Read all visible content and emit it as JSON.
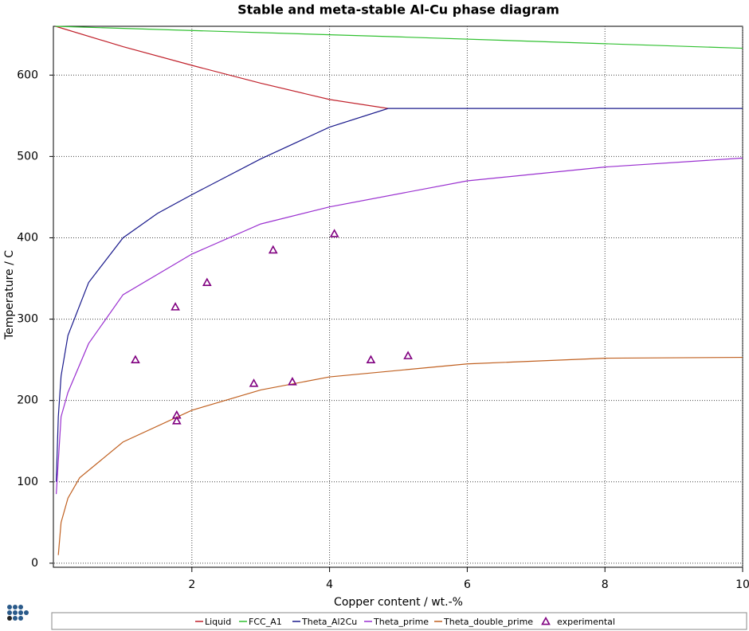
{
  "chart_data": {
    "type": "line",
    "title": "Stable and meta-stable Al-Cu phase diagram",
    "x_label": "Copper content / wt.-%",
    "y_label": "Temperature / C",
    "xlim": [
      0,
      10
    ],
    "ylim": [
      -5,
      660
    ],
    "xticks": [
      2,
      4,
      6,
      8,
      10
    ],
    "yticks": [
      0,
      100,
      200,
      300,
      400,
      500,
      600
    ],
    "grid": true,
    "legend": "bottom",
    "series": [
      {
        "name": "Liquid",
        "color": "#c0202a",
        "x": [
          0.02,
          1,
          2,
          3,
          4,
          4.85
        ],
        "values": [
          660,
          635,
          612,
          590,
          570,
          559
        ]
      },
      {
        "name": "FCC_A1",
        "color": "#30c030",
        "x": [
          0.02,
          5,
          10
        ],
        "values": [
          660,
          647,
          633
        ]
      },
      {
        "name": "Theta_Al2Cu",
        "color": "#1a1a8c",
        "x": [
          0.03,
          0.06,
          0.1,
          0.2,
          0.5,
          1,
          1.5,
          2,
          3,
          4,
          4.85,
          10
        ],
        "values": [
          100,
          180,
          230,
          280,
          345,
          400,
          430,
          453,
          497,
          536,
          559,
          559
        ]
      },
      {
        "name": "Theta_prime",
        "color": "#9a30d0",
        "x": [
          0.03,
          0.1,
          0.2,
          0.5,
          1,
          2,
          3,
          4,
          6,
          8,
          10
        ],
        "values": [
          85,
          180,
          210,
          270,
          330,
          380,
          417,
          438,
          470,
          487,
          498
        ]
      },
      {
        "name": "Theta_double_prime",
        "color": "#c06020",
        "x": [
          0.06,
          0.1,
          0.2,
          0.37,
          1,
          2,
          3,
          4,
          6,
          8,
          10
        ],
        "values": [
          10,
          50,
          80,
          105,
          149,
          188,
          213,
          229,
          245,
          252,
          253
        ]
      },
      {
        "name": "experimental",
        "color": "#800080",
        "marker": "triangle",
        "x": [
          1.18,
          1.76,
          1.78,
          1.78,
          2.22,
          2.9,
          3.18,
          3.46,
          4.07,
          4.6,
          5.14
        ],
        "values": [
          250,
          315,
          182,
          175,
          345,
          221,
          385,
          223,
          405,
          250,
          255
        ]
      }
    ]
  }
}
